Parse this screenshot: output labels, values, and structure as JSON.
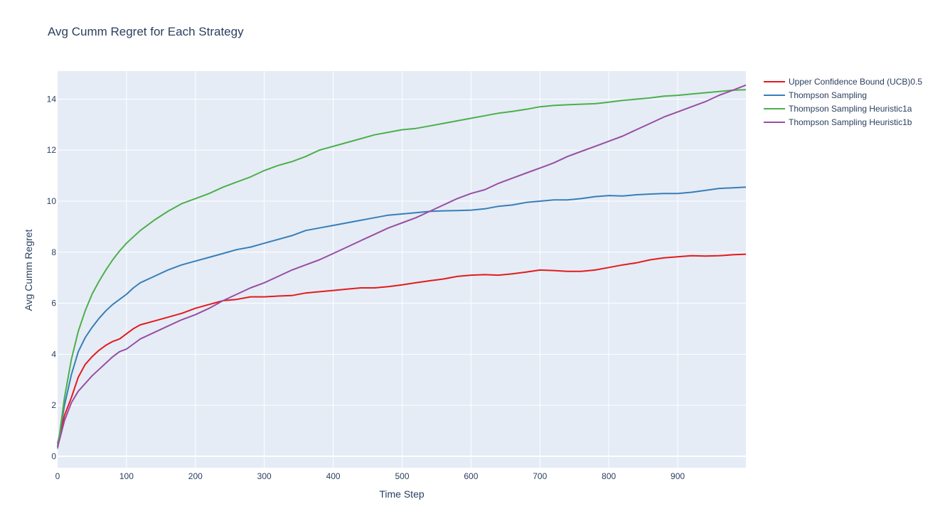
{
  "chart_data": {
    "type": "line",
    "title": "Avg Cumm Regret for Each Strategy",
    "xlabel": "Time Step",
    "ylabel": "Avg Cumm Regret",
    "xlim": [
      0,
      999
    ],
    "ylim": [
      -0.45,
      15.1
    ],
    "xticks": [
      0,
      100,
      200,
      300,
      400,
      500,
      600,
      700,
      800,
      900
    ],
    "yticks": [
      0,
      2,
      4,
      6,
      8,
      10,
      12,
      14
    ],
    "grid": true,
    "legend_position": "right",
    "series": [
      {
        "name": "Upper Confidence Bound (UCB)0.5",
        "color": "#e41a1c",
        "points": [
          [
            0,
            0.5
          ],
          [
            10,
            1.6
          ],
          [
            20,
            2.3
          ],
          [
            30,
            3.1
          ],
          [
            40,
            3.6
          ],
          [
            50,
            3.9
          ],
          [
            60,
            4.15
          ],
          [
            70,
            4.35
          ],
          [
            80,
            4.5
          ],
          [
            90,
            4.6
          ],
          [
            100,
            4.8
          ],
          [
            110,
            5.0
          ],
          [
            120,
            5.15
          ],
          [
            140,
            5.3
          ],
          [
            160,
            5.45
          ],
          [
            180,
            5.6
          ],
          [
            200,
            5.8
          ],
          [
            220,
            5.95
          ],
          [
            240,
            6.1
          ],
          [
            260,
            6.15
          ],
          [
            280,
            6.25
          ],
          [
            300,
            6.25
          ],
          [
            320,
            6.28
          ],
          [
            340,
            6.3
          ],
          [
            360,
            6.4
          ],
          [
            380,
            6.45
          ],
          [
            400,
            6.5
          ],
          [
            420,
            6.55
          ],
          [
            440,
            6.6
          ],
          [
            460,
            6.6
          ],
          [
            480,
            6.65
          ],
          [
            500,
            6.72
          ],
          [
            520,
            6.8
          ],
          [
            540,
            6.88
          ],
          [
            560,
            6.95
          ],
          [
            580,
            7.05
          ],
          [
            600,
            7.1
          ],
          [
            620,
            7.12
          ],
          [
            640,
            7.1
          ],
          [
            660,
            7.15
          ],
          [
            680,
            7.22
          ],
          [
            700,
            7.3
          ],
          [
            720,
            7.28
          ],
          [
            740,
            7.25
          ],
          [
            760,
            7.25
          ],
          [
            780,
            7.3
          ],
          [
            800,
            7.4
          ],
          [
            820,
            7.5
          ],
          [
            840,
            7.58
          ],
          [
            860,
            7.7
          ],
          [
            880,
            7.78
          ],
          [
            900,
            7.82
          ],
          [
            920,
            7.86
          ],
          [
            940,
            7.85
          ],
          [
            960,
            7.86
          ],
          [
            980,
            7.9
          ],
          [
            999,
            7.92
          ]
        ]
      },
      {
        "name": "Thompson Sampling",
        "color": "#377eb8",
        "points": [
          [
            0,
            0.4
          ],
          [
            10,
            2.0
          ],
          [
            20,
            3.2
          ],
          [
            30,
            4.1
          ],
          [
            40,
            4.65
          ],
          [
            50,
            5.05
          ],
          [
            60,
            5.4
          ],
          [
            70,
            5.7
          ],
          [
            80,
            5.95
          ],
          [
            90,
            6.15
          ],
          [
            100,
            6.35
          ],
          [
            110,
            6.6
          ],
          [
            120,
            6.8
          ],
          [
            140,
            7.05
          ],
          [
            160,
            7.3
          ],
          [
            180,
            7.5
          ],
          [
            200,
            7.65
          ],
          [
            220,
            7.8
          ],
          [
            240,
            7.95
          ],
          [
            260,
            8.1
          ],
          [
            280,
            8.2
          ],
          [
            300,
            8.35
          ],
          [
            320,
            8.5
          ],
          [
            340,
            8.65
          ],
          [
            360,
            8.85
          ],
          [
            380,
            8.95
          ],
          [
            400,
            9.05
          ],
          [
            420,
            9.15
          ],
          [
            440,
            9.25
          ],
          [
            460,
            9.35
          ],
          [
            480,
            9.45
          ],
          [
            500,
            9.5
          ],
          [
            520,
            9.55
          ],
          [
            540,
            9.6
          ],
          [
            560,
            9.62
          ],
          [
            580,
            9.63
          ],
          [
            600,
            9.65
          ],
          [
            620,
            9.7
          ],
          [
            640,
            9.8
          ],
          [
            660,
            9.85
          ],
          [
            680,
            9.95
          ],
          [
            700,
            10.0
          ],
          [
            720,
            10.05
          ],
          [
            740,
            10.05
          ],
          [
            760,
            10.1
          ],
          [
            780,
            10.18
          ],
          [
            800,
            10.22
          ],
          [
            820,
            10.2
          ],
          [
            840,
            10.25
          ],
          [
            860,
            10.28
          ],
          [
            880,
            10.3
          ],
          [
            900,
            10.3
          ],
          [
            920,
            10.35
          ],
          [
            940,
            10.42
          ],
          [
            960,
            10.5
          ],
          [
            980,
            10.52
          ],
          [
            999,
            10.55
          ]
        ]
      },
      {
        "name": "Thompson Sampling Heuristic1a",
        "color": "#4daf4a",
        "points": [
          [
            0,
            0.3
          ],
          [
            10,
            2.3
          ],
          [
            20,
            3.8
          ],
          [
            30,
            4.9
          ],
          [
            40,
            5.7
          ],
          [
            50,
            6.35
          ],
          [
            60,
            6.85
          ],
          [
            70,
            7.3
          ],
          [
            80,
            7.7
          ],
          [
            90,
            8.05
          ],
          [
            100,
            8.35
          ],
          [
            110,
            8.6
          ],
          [
            120,
            8.85
          ],
          [
            140,
            9.25
          ],
          [
            160,
            9.6
          ],
          [
            180,
            9.9
          ],
          [
            200,
            10.1
          ],
          [
            220,
            10.3
          ],
          [
            240,
            10.55
          ],
          [
            260,
            10.75
          ],
          [
            280,
            10.95
          ],
          [
            300,
            11.2
          ],
          [
            320,
            11.4
          ],
          [
            340,
            11.55
          ],
          [
            360,
            11.75
          ],
          [
            380,
            12.0
          ],
          [
            400,
            12.15
          ],
          [
            420,
            12.3
          ],
          [
            440,
            12.45
          ],
          [
            460,
            12.6
          ],
          [
            480,
            12.7
          ],
          [
            500,
            12.8
          ],
          [
            520,
            12.85
          ],
          [
            540,
            12.95
          ],
          [
            560,
            13.05
          ],
          [
            580,
            13.15
          ],
          [
            600,
            13.25
          ],
          [
            620,
            13.35
          ],
          [
            640,
            13.45
          ],
          [
            660,
            13.52
          ],
          [
            680,
            13.6
          ],
          [
            700,
            13.7
          ],
          [
            720,
            13.75
          ],
          [
            740,
            13.78
          ],
          [
            760,
            13.8
          ],
          [
            780,
            13.82
          ],
          [
            800,
            13.88
          ],
          [
            820,
            13.95
          ],
          [
            840,
            14.0
          ],
          [
            860,
            14.05
          ],
          [
            880,
            14.12
          ],
          [
            900,
            14.15
          ],
          [
            920,
            14.2
          ],
          [
            940,
            14.25
          ],
          [
            960,
            14.3
          ],
          [
            980,
            14.35
          ],
          [
            999,
            14.37
          ]
        ]
      },
      {
        "name": "Thompson Sampling Heuristic1b",
        "color": "#984ea3",
        "points": [
          [
            0,
            0.35
          ],
          [
            10,
            1.4
          ],
          [
            20,
            2.1
          ],
          [
            30,
            2.55
          ],
          [
            40,
            2.85
          ],
          [
            50,
            3.15
          ],
          [
            60,
            3.4
          ],
          [
            70,
            3.65
          ],
          [
            80,
            3.9
          ],
          [
            90,
            4.1
          ],
          [
            100,
            4.2
          ],
          [
            110,
            4.4
          ],
          [
            120,
            4.6
          ],
          [
            140,
            4.85
          ],
          [
            160,
            5.1
          ],
          [
            180,
            5.35
          ],
          [
            200,
            5.55
          ],
          [
            220,
            5.8
          ],
          [
            240,
            6.1
          ],
          [
            260,
            6.35
          ],
          [
            280,
            6.6
          ],
          [
            300,
            6.8
          ],
          [
            320,
            7.05
          ],
          [
            340,
            7.3
          ],
          [
            360,
            7.5
          ],
          [
            380,
            7.7
          ],
          [
            400,
            7.95
          ],
          [
            420,
            8.2
          ],
          [
            440,
            8.45
          ],
          [
            460,
            8.7
          ],
          [
            480,
            8.95
          ],
          [
            500,
            9.15
          ],
          [
            520,
            9.35
          ],
          [
            540,
            9.6
          ],
          [
            560,
            9.85
          ],
          [
            580,
            10.1
          ],
          [
            600,
            10.3
          ],
          [
            620,
            10.45
          ],
          [
            640,
            10.7
          ],
          [
            660,
            10.9
          ],
          [
            680,
            11.1
          ],
          [
            700,
            11.3
          ],
          [
            720,
            11.5
          ],
          [
            740,
            11.75
          ],
          [
            760,
            11.95
          ],
          [
            780,
            12.15
          ],
          [
            800,
            12.35
          ],
          [
            820,
            12.55
          ],
          [
            840,
            12.8
          ],
          [
            860,
            13.05
          ],
          [
            880,
            13.3
          ],
          [
            900,
            13.5
          ],
          [
            920,
            13.7
          ],
          [
            940,
            13.9
          ],
          [
            960,
            14.15
          ],
          [
            980,
            14.35
          ],
          [
            999,
            14.55
          ]
        ]
      }
    ]
  }
}
